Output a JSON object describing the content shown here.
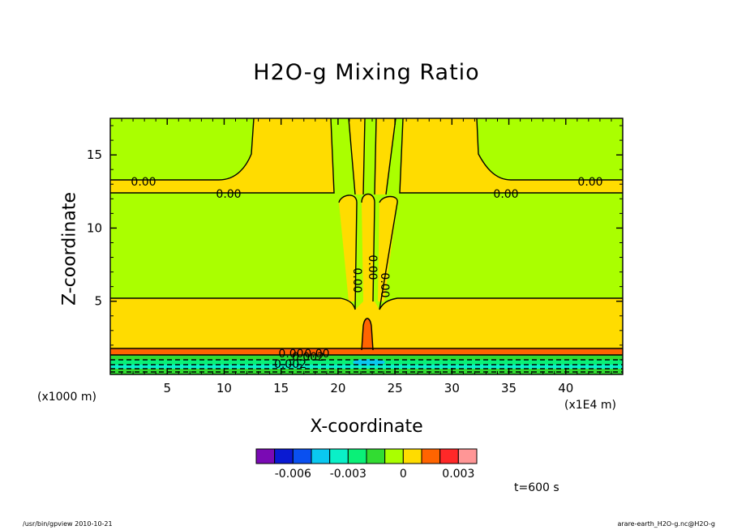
{
  "chart_data": {
    "type": "contour",
    "title": "H2O-g Mixing Ratio",
    "xlabel": "X-coordinate",
    "ylabel": "Z-coordinate",
    "x_unit": "(x1E4 m)",
    "y_unit": "(x1000 m)",
    "x_ticks": [
      5,
      10,
      15,
      20,
      25,
      30,
      35,
      40
    ],
    "y_ticks": [
      5,
      10,
      15
    ],
    "xlim": [
      0,
      45
    ],
    "ylim": [
      0,
      17.5
    ],
    "contour_labels": [
      "0.00",
      "0.00",
      "0.00",
      "0.00",
      "0.00",
      "0.00",
      "0.00",
      "0.00",
      "0.00",
      "0.002",
      "0.002"
    ],
    "colorbar": {
      "colors": [
        "#7a0ab4",
        "#0a1ad2",
        "#0a50f0",
        "#0ac8f0",
        "#0af0c8",
        "#0af078",
        "#32dc32",
        "#aaff00",
        "#ffdc00",
        "#ff6400",
        "#ff2828",
        "#ff9696"
      ],
      "tick_labels": [
        "-0.006",
        "-0.003",
        "0",
        "0.003"
      ],
      "tick_values": [
        -0.006,
        -0.003,
        0,
        0.003
      ],
      "range": [
        -0.008,
        0.004
      ]
    },
    "time_label": "t=600 s"
  },
  "footer": {
    "left": "/usr/bin/gpview   2010-10-21",
    "right": "arare-earth_H2O-g.nc@H2O-g"
  }
}
